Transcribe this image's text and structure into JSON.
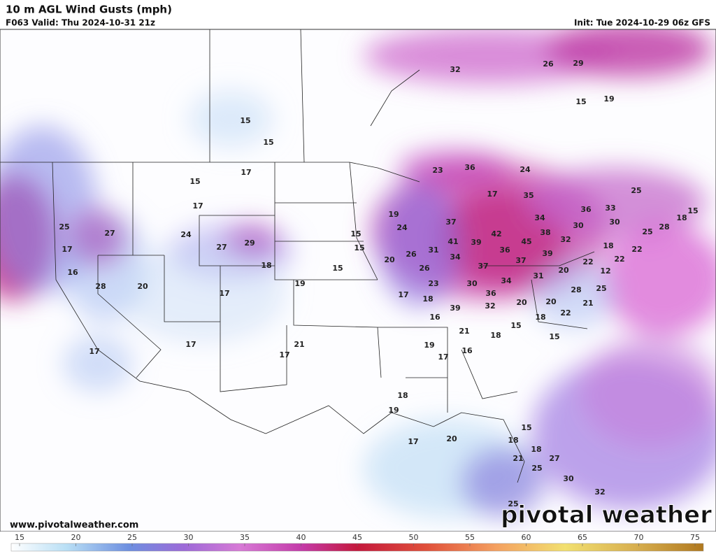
{
  "header": {
    "title": "10 m AGL Wind Gusts (mph)",
    "valid": "F063 Valid: Thu 2024-10-31 21z",
    "init": "Init: Tue 2024-10-29 06z GFS"
  },
  "map": {
    "labels": [
      15,
      15,
      32,
      26,
      29,
      15,
      19,
      17,
      15,
      17,
      23,
      36,
      24,
      25,
      35,
      17,
      36,
      33,
      18,
      15,
      25,
      27,
      24,
      19,
      24,
      37,
      34,
      38,
      30,
      30,
      25,
      28,
      17,
      27,
      29,
      15,
      15,
      42,
      41,
      39,
      45,
      32,
      18,
      22,
      16,
      18,
      15,
      20,
      26,
      31,
      34,
      36,
      37,
      39,
      22,
      22,
      37,
      26,
      12,
      28,
      20,
      19,
      23,
      30,
      34,
      31,
      20,
      17,
      17,
      18,
      36,
      28,
      25,
      20,
      21,
      20,
      32,
      39,
      16,
      18,
      22,
      15,
      21,
      18,
      15,
      17,
      21,
      17,
      19,
      16,
      17,
      17,
      18,
      19,
      15,
      17,
      20,
      18,
      18,
      21,
      27,
      25,
      30,
      32,
      25
    ]
  },
  "footer": {
    "url": "www.pivotalweather.com",
    "brand": "pivotal weather"
  },
  "colorbar": {
    "ticks": [
      15,
      20,
      25,
      30,
      35,
      40,
      45,
      50,
      55,
      60,
      65,
      70,
      75
    ]
  }
}
